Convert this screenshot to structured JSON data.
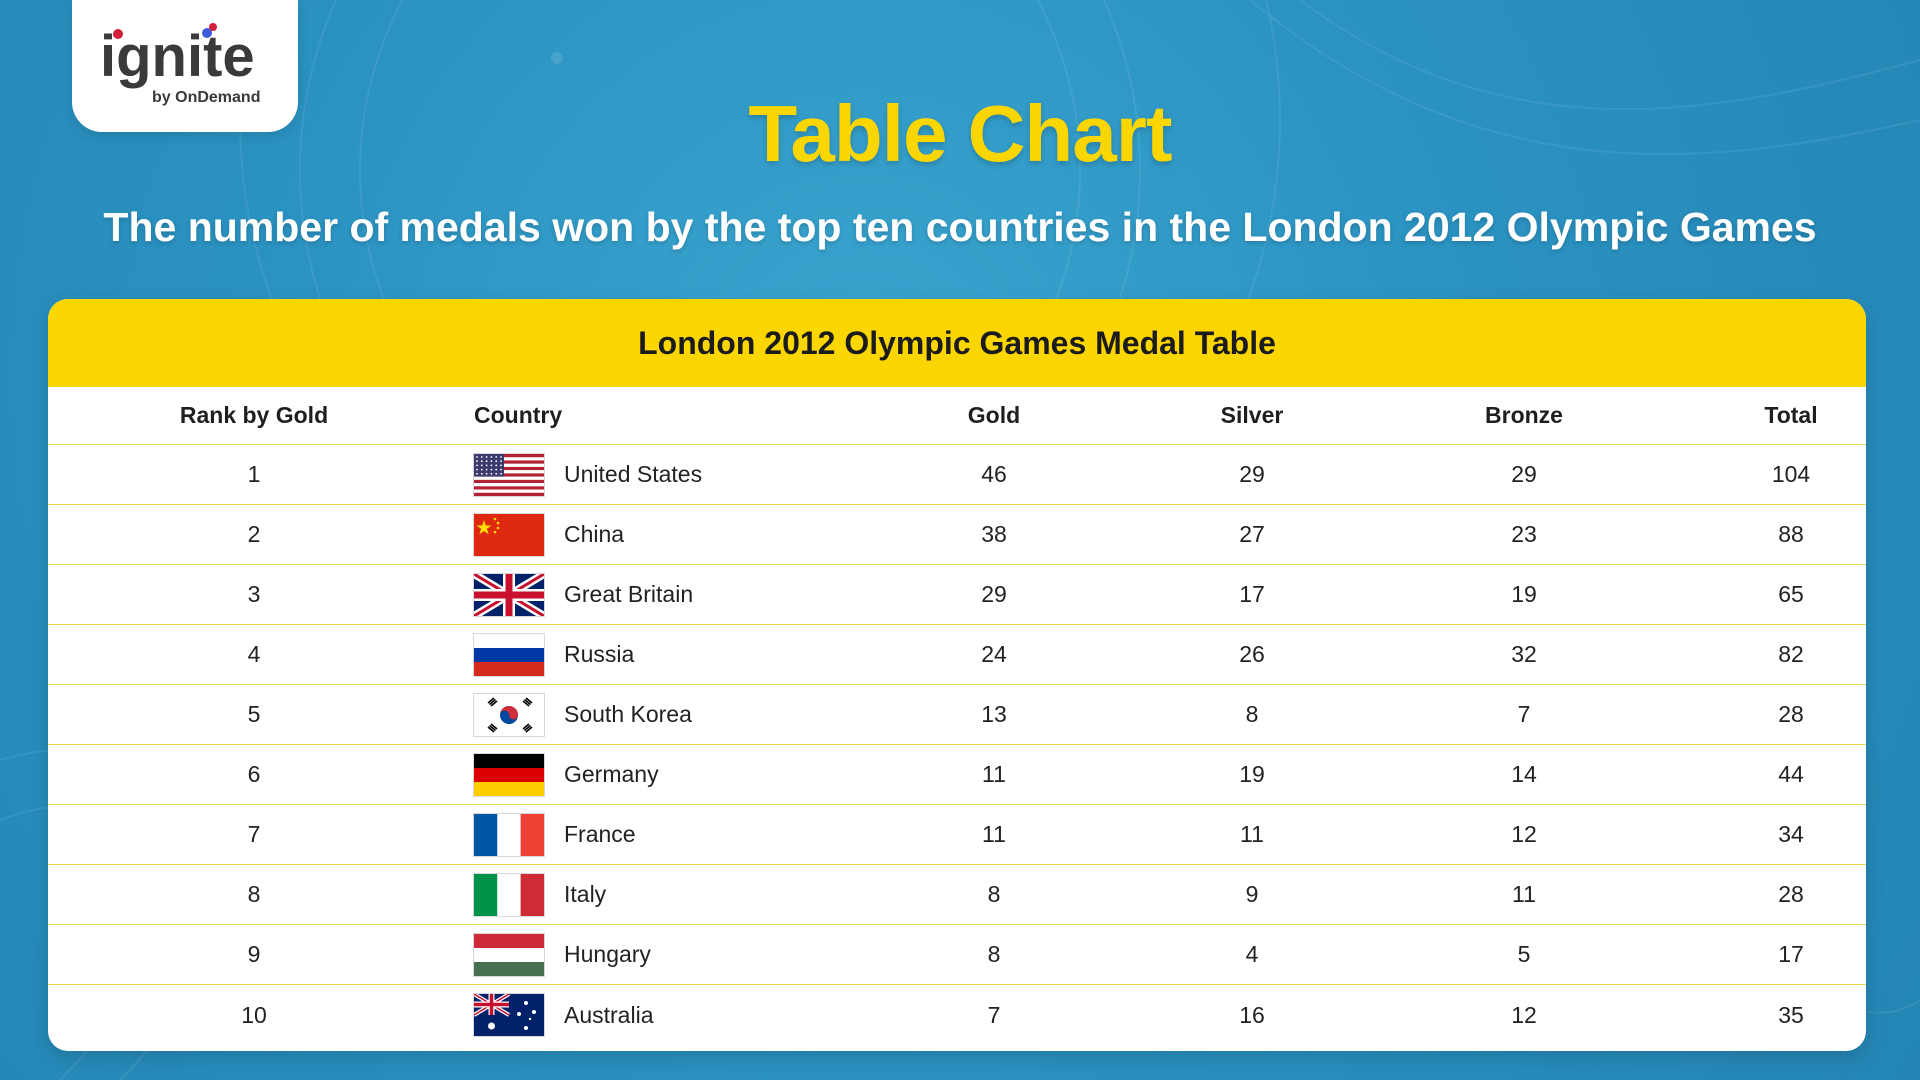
{
  "logo": {
    "word": "ignite",
    "tagline": "by OnDemand"
  },
  "title": "Table Chart",
  "subtitle": "The number of medals won by the top ten countries in the London 2012 Olympic Games",
  "colors": {
    "accent_yellow": "#fcd600",
    "background_blue": "#2b93c2",
    "row_rule": "#f1d34e"
  },
  "chart_data": {
    "type": "table",
    "title": "London 2012 Olympic Games Medal Table",
    "columns": [
      "Rank by Gold",
      "Country",
      "Gold",
      "Silver",
      "Bronze",
      "Total"
    ],
    "rows": [
      {
        "rank": "1",
        "country": "United States",
        "flag": "us-flag-icon",
        "gold": "46",
        "silver": "29",
        "bronze": "29",
        "total": "104"
      },
      {
        "rank": "2",
        "country": "China",
        "flag": "china-flag-icon",
        "gold": "38",
        "silver": "27",
        "bronze": "23",
        "total": "88"
      },
      {
        "rank": "3",
        "country": "Great Britain",
        "flag": "uk-flag-icon",
        "gold": "29",
        "silver": "17",
        "bronze": "19",
        "total": "65"
      },
      {
        "rank": "4",
        "country": "Russia",
        "flag": "russia-flag-icon",
        "gold": "24",
        "silver": "26",
        "bronze": "32",
        "total": "82"
      },
      {
        "rank": "5",
        "country": "South Korea",
        "flag": "south-korea-flag-icon",
        "gold": "13",
        "silver": "8",
        "bronze": "7",
        "total": "28"
      },
      {
        "rank": "6",
        "country": "Germany",
        "flag": "germany-flag-icon",
        "gold": "11",
        "silver": "19",
        "bronze": "14",
        "total": "44"
      },
      {
        "rank": "7",
        "country": "France",
        "flag": "france-flag-icon",
        "gold": "11",
        "silver": "11",
        "bronze": "12",
        "total": "34"
      },
      {
        "rank": "8",
        "country": "Italy",
        "flag": "italy-flag-icon",
        "gold": "8",
        "silver": "9",
        "bronze": "11",
        "total": "28"
      },
      {
        "rank": "9",
        "country": "Hungary",
        "flag": "hungary-flag-icon",
        "gold": "8",
        "silver": "4",
        "bronze": "5",
        "total": "17"
      },
      {
        "rank": "10",
        "country": "Australia",
        "flag": "australia-flag-icon",
        "gold": "7",
        "silver": "16",
        "bronze": "12",
        "total": "35"
      }
    ]
  }
}
